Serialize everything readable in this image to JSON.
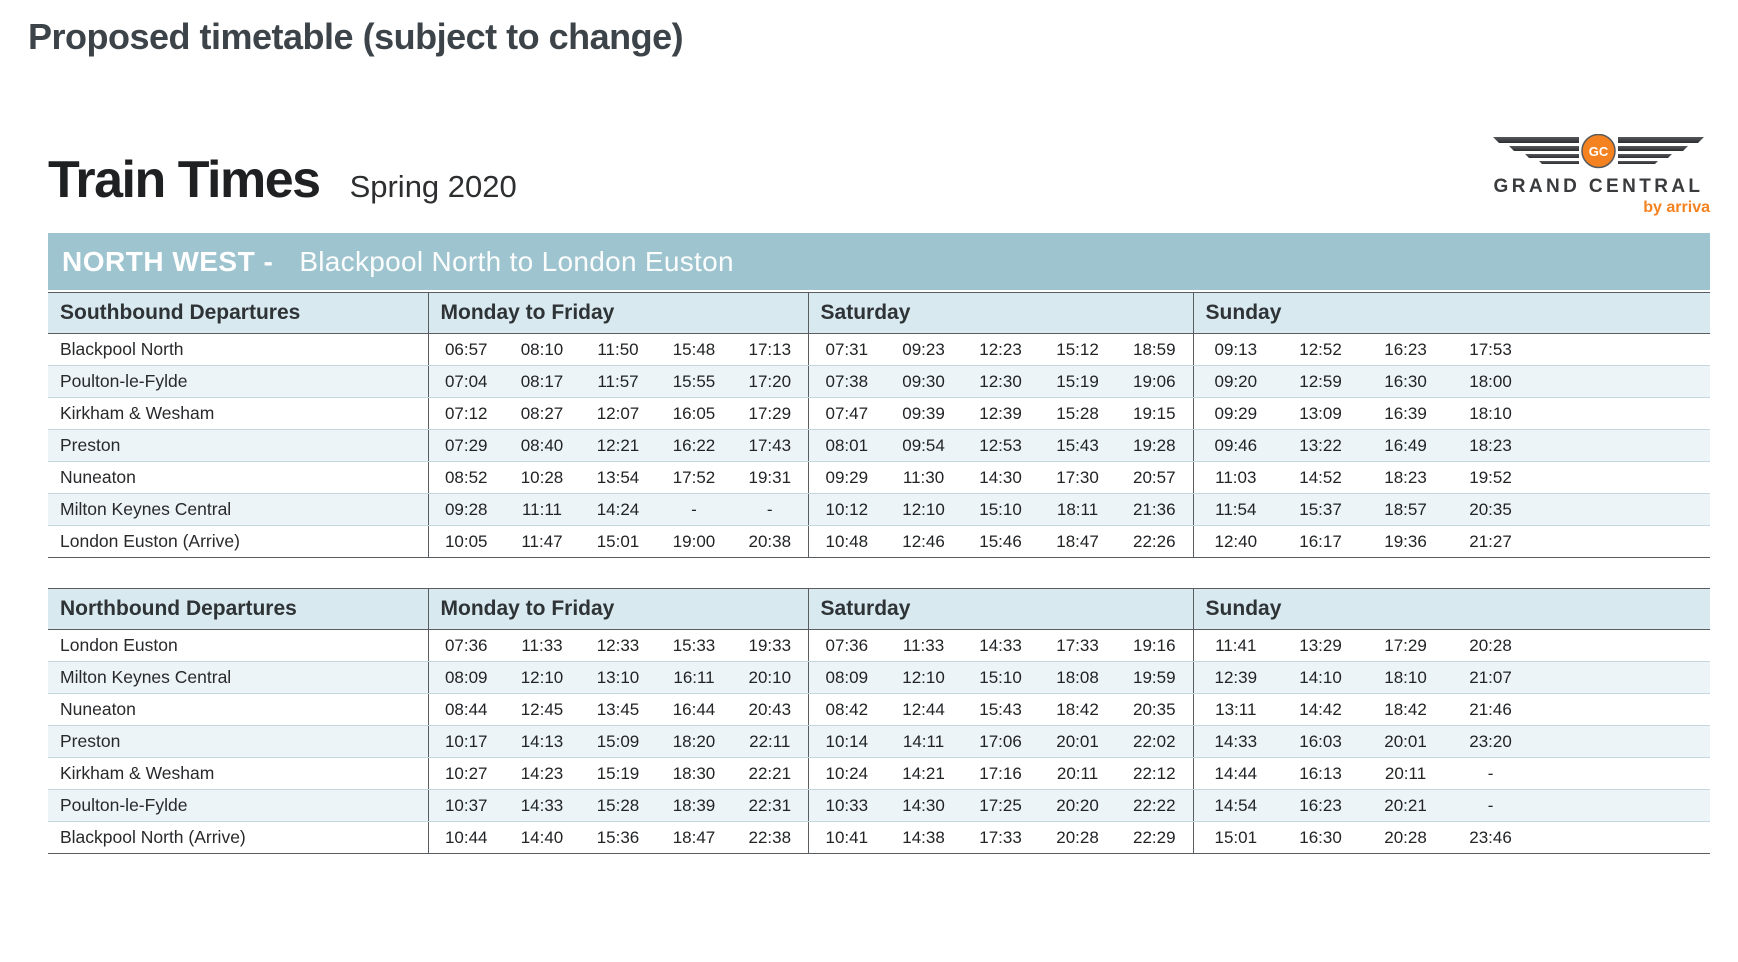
{
  "page": {
    "title": "Proposed timetable (subject to change)"
  },
  "masthead": {
    "title": "Train Times",
    "season": "Spring 2020",
    "logo": {
      "monogram": "GC",
      "brand": "GRAND CENTRAL",
      "byline": "by arriva"
    }
  },
  "banner": {
    "region": "NORTH WEST -",
    "route": "Blackpool North to London Euston"
  },
  "colors": {
    "banner_bg": "#9ec4d0",
    "table_header_bg": "#d9e9f0",
    "row_stripe_bg": "#edf4f8",
    "brand_orange": "#f58220",
    "wing_dark": "#3c3d3f"
  },
  "tables": [
    {
      "title": "Southbound Departures",
      "groups": [
        "Monday to Friday",
        "Saturday",
        "Sunday"
      ],
      "rows": [
        {
          "station": "Blackpool North",
          "times": [
            [
              "06:57",
              "08:10",
              "11:50",
              "15:48",
              "17:13"
            ],
            [
              "07:31",
              "09:23",
              "12:23",
              "15:12",
              "18:59"
            ],
            [
              "09:13",
              "12:52",
              "16:23",
              "17:53"
            ]
          ]
        },
        {
          "station": "Poulton-le-Fylde",
          "times": [
            [
              "07:04",
              "08:17",
              "11:57",
              "15:55",
              "17:20"
            ],
            [
              "07:38",
              "09:30",
              "12:30",
              "15:19",
              "19:06"
            ],
            [
              "09:20",
              "12:59",
              "16:30",
              "18:00"
            ]
          ]
        },
        {
          "station": "Kirkham & Wesham",
          "times": [
            [
              "07:12",
              "08:27",
              "12:07",
              "16:05",
              "17:29"
            ],
            [
              "07:47",
              "09:39",
              "12:39",
              "15:28",
              "19:15"
            ],
            [
              "09:29",
              "13:09",
              "16:39",
              "18:10"
            ]
          ]
        },
        {
          "station": "Preston",
          "times": [
            [
              "07:29",
              "08:40",
              "12:21",
              "16:22",
              "17:43"
            ],
            [
              "08:01",
              "09:54",
              "12:53",
              "15:43",
              "19:28"
            ],
            [
              "09:46",
              "13:22",
              "16:49",
              "18:23"
            ]
          ]
        },
        {
          "station": "Nuneaton",
          "times": [
            [
              "08:52",
              "10:28",
              "13:54",
              "17:52",
              "19:31"
            ],
            [
              "09:29",
              "11:30",
              "14:30",
              "17:30",
              "20:57"
            ],
            [
              "11:03",
              "14:52",
              "18:23",
              "19:52"
            ]
          ]
        },
        {
          "station": "Milton Keynes Central",
          "times": [
            [
              "09:28",
              "11:11",
              "14:24",
              "-",
              "-"
            ],
            [
              "10:12",
              "12:10",
              "15:10",
              "18:11",
              "21:36"
            ],
            [
              "11:54",
              "15:37",
              "18:57",
              "20:35"
            ]
          ]
        },
        {
          "station": "London Euston (Arrive)",
          "times": [
            [
              "10:05",
              "11:47",
              "15:01",
              "19:00",
              "20:38"
            ],
            [
              "10:48",
              "12:46",
              "15:46",
              "18:47",
              "22:26"
            ],
            [
              "12:40",
              "16:17",
              "19:36",
              "21:27"
            ]
          ]
        }
      ]
    },
    {
      "title": "Northbound Departures",
      "groups": [
        "Monday to Friday",
        "Saturday",
        "Sunday"
      ],
      "rows": [
        {
          "station": "London Euston",
          "times": [
            [
              "07:36",
              "11:33",
              "12:33",
              "15:33",
              "19:33"
            ],
            [
              "07:36",
              "11:33",
              "14:33",
              "17:33",
              "19:16"
            ],
            [
              "11:41",
              "13:29",
              "17:29",
              "20:28"
            ]
          ]
        },
        {
          "station": "Milton Keynes Central",
          "times": [
            [
              "08:09",
              "12:10",
              "13:10",
              "16:11",
              "20:10"
            ],
            [
              "08:09",
              "12:10",
              "15:10",
              "18:08",
              "19:59"
            ],
            [
              "12:39",
              "14:10",
              "18:10",
              "21:07"
            ]
          ]
        },
        {
          "station": "Nuneaton",
          "times": [
            [
              "08:44",
              "12:45",
              "13:45",
              "16:44",
              "20:43"
            ],
            [
              "08:42",
              "12:44",
              "15:43",
              "18:42",
              "20:35"
            ],
            [
              "13:11",
              "14:42",
              "18:42",
              "21:46"
            ]
          ]
        },
        {
          "station": "Preston",
          "times": [
            [
              "10:17",
              "14:13",
              "15:09",
              "18:20",
              "22:11"
            ],
            [
              "10:14",
              "14:11",
              "17:06",
              "20:01",
              "22:02"
            ],
            [
              "14:33",
              "16:03",
              "20:01",
              "23:20"
            ]
          ]
        },
        {
          "station": "Kirkham & Wesham",
          "times": [
            [
              "10:27",
              "14:23",
              "15:19",
              "18:30",
              "22:21"
            ],
            [
              "10:24",
              "14:21",
              "17:16",
              "20:11",
              "22:12"
            ],
            [
              "14:44",
              "16:13",
              "20:11",
              "-"
            ]
          ]
        },
        {
          "station": "Poulton-le-Fylde",
          "times": [
            [
              "10:37",
              "14:33",
              "15:28",
              "18:39",
              "22:31"
            ],
            [
              "10:33",
              "14:30",
              "17:25",
              "20:20",
              "22:22"
            ],
            [
              "14:54",
              "16:23",
              "20:21",
              "-"
            ]
          ]
        },
        {
          "station": "Blackpool North (Arrive)",
          "times": [
            [
              "10:44",
              "14:40",
              "15:36",
              "18:47",
              "22:38"
            ],
            [
              "10:41",
              "14:38",
              "17:33",
              "20:28",
              "22:29"
            ],
            [
              "15:01",
              "16:30",
              "20:28",
              "23:46"
            ]
          ]
        }
      ]
    }
  ]
}
